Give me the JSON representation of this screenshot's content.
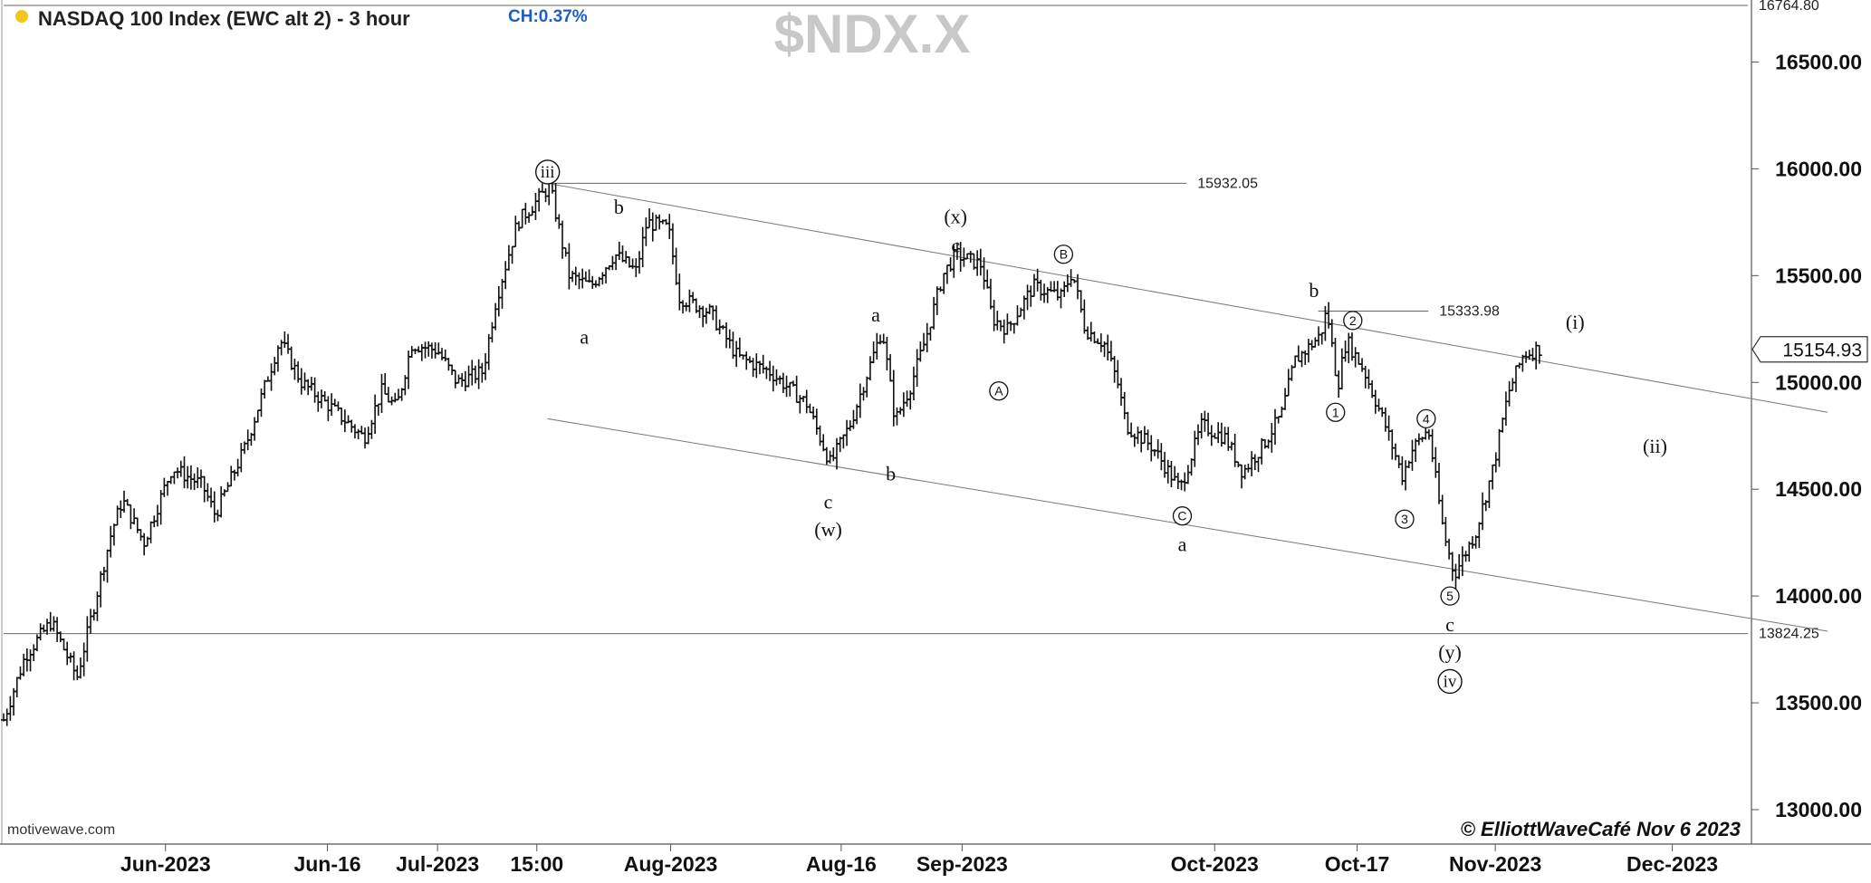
{
  "header": {
    "title": "NASDAQ 100 Index (EWC alt 2) - 3 hour",
    "change": "CH:0.37%",
    "symbol": "$NDX.X",
    "dot_color": "#f5c518",
    "change_color": "#1f5fbf"
  },
  "footer": {
    "source": "motivewave.com",
    "copyright": "© ElliottWaveCafé Nov 6 2023"
  },
  "chart_data": {
    "type": "ohlc",
    "title": "$NDX.X",
    "ylim": [
      12850,
      16800
    ],
    "y_ticks": [
      {
        "value": 13000,
        "label": "13000.00"
      },
      {
        "value": 13500,
        "label": "13500.00"
      },
      {
        "value": 14000,
        "label": "14000.00"
      },
      {
        "value": 14500,
        "label": "14500.00"
      },
      {
        "value": 15000,
        "label": "15000.00"
      },
      {
        "value": 15500,
        "label": "15500.00"
      },
      {
        "value": 16000,
        "label": "16000.00"
      },
      {
        "value": 16500,
        "label": "16500.00"
      }
    ],
    "x_ticks": [
      {
        "t": 75,
        "label": "Jun-2023"
      },
      {
        "t": 150,
        "label": "Jun-16"
      },
      {
        "t": 201,
        "label": "Jul-2023"
      },
      {
        "t": 247,
        "label": "15:00"
      },
      {
        "t": 309,
        "label": "Aug-2023"
      },
      {
        "t": 388,
        "label": "Aug-16"
      },
      {
        "t": 444,
        "label": "Sep-2023"
      },
      {
        "t": 561,
        "label": "Oct-2023"
      },
      {
        "t": 627,
        "label": "Oct-17"
      },
      {
        "t": 691,
        "label": "Nov-2023"
      },
      {
        "t": 773,
        "label": "Dec-2023"
      }
    ],
    "last_price": "15154.93",
    "level_lines": [
      {
        "value": 16764.8,
        "label": "16764.80",
        "t_start": 0,
        "t_end": 808
      },
      {
        "value": 15932.05,
        "label": "15932.05",
        "t_start": 252,
        "t_end": 548
      },
      {
        "value": 15333.98,
        "label": "15333.98",
        "t_start": 609,
        "t_end": 660
      },
      {
        "value": 13824.25,
        "label": "13824.25",
        "t_start": 0,
        "t_end": 808
      }
    ],
    "trend_lines": [
      {
        "t1": 252,
        "v1": 15932,
        "t2": 845,
        "v2": 14860
      },
      {
        "t1": 252,
        "v1": 14830,
        "t2": 845,
        "v2": 13835
      }
    ],
    "anchors": [
      {
        "t": 0,
        "v": 13420
      },
      {
        "t": 10,
        "v": 13720
      },
      {
        "t": 22,
        "v": 13880
      },
      {
        "t": 34,
        "v": 13620
      },
      {
        "t": 50,
        "v": 14300
      },
      {
        "t": 55,
        "v": 14450
      },
      {
        "t": 65,
        "v": 14250
      },
      {
        "t": 78,
        "v": 14600
      },
      {
        "t": 92,
        "v": 14520
      },
      {
        "t": 98,
        "v": 14380
      },
      {
        "t": 112,
        "v": 14700
      },
      {
        "t": 128,
        "v": 15200
      },
      {
        "t": 138,
        "v": 15000
      },
      {
        "t": 152,
        "v": 14880
      },
      {
        "t": 167,
        "v": 14740
      },
      {
        "t": 175,
        "v": 14960
      },
      {
        "t": 182,
        "v": 14880
      },
      {
        "t": 189,
        "v": 15180
      },
      {
        "t": 201,
        "v": 15150
      },
      {
        "t": 210,
        "v": 15000
      },
      {
        "t": 222,
        "v": 15050
      },
      {
        "t": 228,
        "v": 15380
      },
      {
        "t": 238,
        "v": 15750
      },
      {
        "t": 247,
        "v": 15850
      },
      {
        "t": 253,
        "v": 15920
      },
      {
        "t": 262,
        "v": 15500
      },
      {
        "t": 272,
        "v": 15450
      },
      {
        "t": 283,
        "v": 15600
      },
      {
        "t": 293,
        "v": 15520
      },
      {
        "t": 298,
        "v": 15750
      },
      {
        "t": 308,
        "v": 15720
      },
      {
        "t": 313,
        "v": 15400
      },
      {
        "t": 327,
        "v": 15330
      },
      {
        "t": 340,
        "v": 15120
      },
      {
        "t": 355,
        "v": 15050
      },
      {
        "t": 372,
        "v": 14900
      },
      {
        "t": 383,
        "v": 14620
      },
      {
        "t": 392,
        "v": 14800
      },
      {
        "t": 402,
        "v": 15100
      },
      {
        "t": 407,
        "v": 15250
      },
      {
        "t": 413,
        "v": 14820
      },
      {
        "t": 420,
        "v": 14980
      },
      {
        "t": 427,
        "v": 15200
      },
      {
        "t": 435,
        "v": 15500
      },
      {
        "t": 441,
        "v": 15600
      },
      {
        "t": 453,
        "v": 15550
      },
      {
        "t": 458,
        "v": 15300
      },
      {
        "t": 465,
        "v": 15250
      },
      {
        "t": 477,
        "v": 15450
      },
      {
        "t": 490,
        "v": 15400
      },
      {
        "t": 495,
        "v": 15520
      },
      {
        "t": 501,
        "v": 15250
      },
      {
        "t": 510,
        "v": 15180
      },
      {
        "t": 516,
        "v": 15000
      },
      {
        "t": 520,
        "v": 14800
      },
      {
        "t": 532,
        "v": 14700
      },
      {
        "t": 545,
        "v": 14500
      },
      {
        "t": 555,
        "v": 14800
      },
      {
        "t": 566,
        "v": 14740
      },
      {
        "t": 574,
        "v": 14580
      },
      {
        "t": 583,
        "v": 14700
      },
      {
        "t": 592,
        "v": 14850
      },
      {
        "t": 598,
        "v": 15100
      },
      {
        "t": 610,
        "v": 15220
      },
      {
        "t": 613,
        "v": 15340
      },
      {
        "t": 618,
        "v": 14980
      },
      {
        "t": 622,
        "v": 15200
      },
      {
        "t": 630,
        "v": 15060
      },
      {
        "t": 640,
        "v": 14800
      },
      {
        "t": 648,
        "v": 14560
      },
      {
        "t": 652,
        "v": 14680
      },
      {
        "t": 660,
        "v": 14780
      },
      {
        "t": 667,
        "v": 14300
      },
      {
        "t": 672,
        "v": 14100
      },
      {
        "t": 682,
        "v": 14300
      },
      {
        "t": 690,
        "v": 14600
      },
      {
        "t": 697,
        "v": 14950
      },
      {
        "t": 704,
        "v": 15130
      },
      {
        "t": 712,
        "v": 15160
      }
    ],
    "wave_labels": [
      {
        "text": "iii",
        "t": 252,
        "v": 15985,
        "style": "circle-roman"
      },
      {
        "text": "b",
        "t": 285,
        "v": 15820,
        "style": "plain"
      },
      {
        "text": "a",
        "t": 269,
        "v": 15210,
        "style": "plain"
      },
      {
        "text": "c",
        "t": 382,
        "v": 14440,
        "style": "plain"
      },
      {
        "text": "(w)",
        "t": 382,
        "v": 14310,
        "style": "plain"
      },
      {
        "text": "a",
        "t": 404,
        "v": 15315,
        "style": "plain"
      },
      {
        "text": "b",
        "t": 411,
        "v": 14570,
        "style": "plain"
      },
      {
        "text": "(x)",
        "t": 441,
        "v": 15775,
        "style": "plain"
      },
      {
        "text": "c",
        "t": 441,
        "v": 15640,
        "style": "plain"
      },
      {
        "text": "B",
        "t": 491,
        "v": 15600,
        "style": "circle-small"
      },
      {
        "text": "A",
        "t": 461,
        "v": 14960,
        "style": "circle-small"
      },
      {
        "text": "C",
        "t": 546,
        "v": 14375,
        "style": "circle-small"
      },
      {
        "text": "a",
        "t": 546,
        "v": 14240,
        "style": "plain"
      },
      {
        "text": "b",
        "t": 607,
        "v": 15430,
        "style": "plain"
      },
      {
        "text": "2",
        "t": 625,
        "v": 15290,
        "style": "circle-small"
      },
      {
        "text": "1",
        "t": 617,
        "v": 14860,
        "style": "circle-small"
      },
      {
        "text": "(i)",
        "t": 728,
        "v": 15280,
        "style": "plain"
      },
      {
        "text": "(ii)",
        "t": 765,
        "v": 14700,
        "style": "plain"
      },
      {
        "text": "4",
        "t": 659,
        "v": 14830,
        "style": "circle-small"
      },
      {
        "text": "3",
        "t": 649,
        "v": 14360,
        "style": "circle-small"
      },
      {
        "text": "5",
        "t": 670,
        "v": 14000,
        "style": "circle-small"
      },
      {
        "text": "c",
        "t": 670,
        "v": 13865,
        "style": "plain"
      },
      {
        "text": "(y)",
        "t": 670,
        "v": 13735,
        "style": "plain"
      },
      {
        "text": "iv",
        "t": 670,
        "v": 13600,
        "style": "circle-roman"
      }
    ]
  }
}
